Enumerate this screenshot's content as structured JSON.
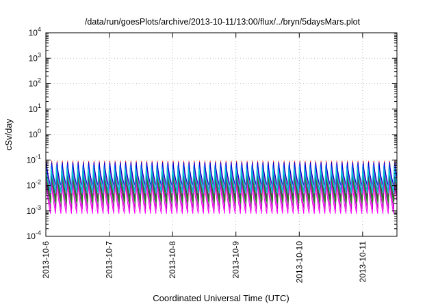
{
  "chart_data": {
    "type": "line",
    "title": "/data/run/goesPlots/archive/2013-10-11/13:00/flux/../bryn/5daysMars.plot",
    "xlabel": "Coordinated Universal Time (UTC)",
    "ylabel": "cSv/day",
    "x_range": [
      "2013-10-06",
      "2013-10-11 13:00"
    ],
    "x_ticks": [
      "2013-10-6",
      "2013-10-7",
      "2013-10-8",
      "2013-10-9",
      "2013-10-10",
      "2013-10-11"
    ],
    "y_scale": "log",
    "ylim": [
      0.0001,
      10000
    ],
    "y_ticks": [
      {
        "base": "10",
        "exp": "-4"
      },
      {
        "base": "10",
        "exp": "-3"
      },
      {
        "base": "10",
        "exp": "-2"
      },
      {
        "base": "10",
        "exp": "-1"
      },
      {
        "base": "10",
        "exp": "0"
      },
      {
        "base": "10",
        "exp": "1"
      },
      {
        "base": "10",
        "exp": "2"
      },
      {
        "base": "10",
        "exp": "3"
      },
      {
        "base": "10",
        "exp": "4"
      }
    ],
    "grid": true,
    "pattern": {
      "cycles_per_day": 12,
      "description": "sawtooth"
    },
    "series": [
      {
        "color": "#ff00ff",
        "peak": 0.018,
        "trough": 0.0008
      },
      {
        "color": "#c000c0",
        "peak": 0.03,
        "trough": 0.0012
      },
      {
        "color": "#8b0000",
        "peak": 0.06,
        "trough": 0.0025
      },
      {
        "color": "#ff2020",
        "peak": 0.09,
        "trough": 0.004
      },
      {
        "color": "#2f4f4f",
        "peak": 0.05,
        "trough": 0.003
      },
      {
        "color": "#228b22",
        "peak": 0.04,
        "trough": 0.002
      },
      {
        "color": "#9400d3",
        "peak": 0.075,
        "trough": 0.0045
      },
      {
        "color": "#0000cd",
        "peak": 0.08,
        "trough": 0.008
      },
      {
        "color": "#1e90ff",
        "peak": 0.06,
        "trough": 0.006
      },
      {
        "color": "#00ced1",
        "peak": 0.045,
        "trough": 0.005
      }
    ]
  }
}
